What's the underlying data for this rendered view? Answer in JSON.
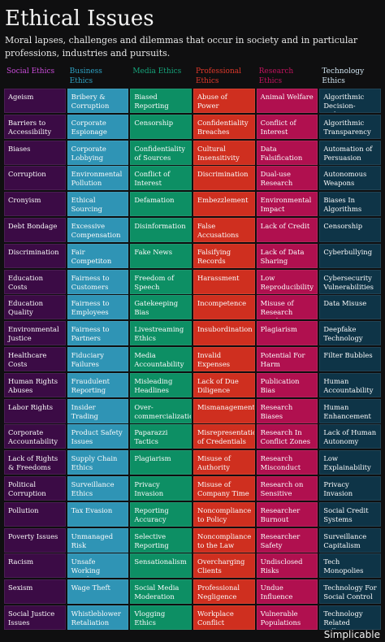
{
  "title": "Ethical Issues",
  "subtitle": "Moral lapses, challenges and dilemmas that occur in society and in particular professions, industries and pursuits.",
  "brand": "Simplicable",
  "columns": [
    {
      "header": "Social Ethics",
      "header_color": "#c94bd8",
      "cell_color": "#3b0b45",
      "items": [
        "Ageism",
        "Barriers to Accessibility",
        "Biases",
        "Corruption",
        "Cronyism",
        "Debt Bondage",
        "Discrimination",
        "Education Costs",
        "Education Quality",
        "Environmental Justice",
        "Healthcare Costs",
        "Human Rights Abuses",
        "Labor Rights",
        "Corporate Accountability",
        "Lack of Rights & Freedoms",
        "Political Corruption",
        "Pollution",
        "Poverty Issues",
        "Racism",
        "Sexism",
        "Social Justice Issues"
      ]
    },
    {
      "header": "Business Ethics",
      "header_color": "#2ea2c4",
      "cell_color": "#2f94b5",
      "items": [
        "Bribery & Corruption",
        "Corporate Espionage",
        "Corporate Lobbying",
        "Environmental Pollution",
        "Ethical Sourcing",
        "Excessive Compensation",
        "Fair Competiton",
        "Fairness to Customers",
        "Fairness to Employees",
        "Fairness to Partners",
        "Fiduciary Failures",
        "Fraudulent Reporting",
        "Insider Trading",
        "Product Safety Issues",
        "Supply Chain Ethics",
        "Surveillance Ethics",
        "Tax Evasion",
        "Unmanaged Risk",
        "Unsafe Working Conditions",
        "Wage Theft",
        "Whistleblower Retaliation"
      ]
    },
    {
      "header": "Media Ethics",
      "header_color": "#16a37a",
      "cell_color": "#0d8f64",
      "items": [
        "Biased Reporting",
        "Censorship",
        "Confidentiality of Sources",
        "Conflict of Interest",
        "Defamation",
        "Disinformation",
        "Fake News",
        "Freedom of Speech",
        "Gatekeeping Bias",
        "Livestreaming Ethics",
        "Media Accountability",
        "Misleading Headlines",
        "Over-commercialization",
        "Paparazzi Tactics",
        "Plagiarism",
        "Privacy Invasion",
        "Reporting Accuracy",
        "Selective Reporting",
        "Sensationalism",
        "Social Media Moderation",
        "Vlogging Ethics"
      ]
    },
    {
      "header": "Professional Ethics",
      "header_color": "#e0392b",
      "cell_color": "#cf2f1f",
      "items": [
        "Abuse of Power",
        "Confidentiality Breaches",
        "Cultural Insensitivity",
        "Discrimination",
        "Embezzlement",
        "False Accusations",
        "Falsifying Records",
        "Harassment",
        "Incompetence",
        "Insubordination",
        "Invalid Expenses",
        "Lack of Due Diligence",
        "Mismanagement",
        "Misrepresentation of Credentials",
        "Misuse of Authority",
        "Misuse of Company Time",
        "Noncompliance to Policy",
        "Noncompliance to the Law",
        "Overcharging Clients",
        "Professional Negligence",
        "Workplace Conflict"
      ]
    },
    {
      "header": "Research Ethics",
      "header_color": "#c2135e",
      "cell_color": "#b0104f",
      "items": [
        "Animal Welfare",
        "Conflict of Interest",
        "Data Falsification",
        "Dual-use Research",
        "Environmental Impact",
        "Lack of Credit",
        "Lack of Data Sharing",
        "Low Reproducibility",
        "Misuse of Research Funds",
        "Plagiarism",
        "Potential For Harm",
        "Publication Bias",
        "Research Biases",
        "Research In Conflict Zones",
        "Research Misconduct",
        "Research on Sensitive Topics",
        "Researcher Burnout",
        "Researcher Safety",
        "Undisclosed Risks",
        "Undue Influence",
        "Vulnerable Populations"
      ]
    },
    {
      "header": "Technology Ethics",
      "header_color": "#cfe3ef",
      "cell_color": "#0e3447",
      "items": [
        "Algorithmic Decision-making",
        "Algorithmic Transparency",
        "Automation of Persuasion",
        "Autonomous Weapons",
        "Biases In Algorithms",
        "Censorship",
        "Cyberbullying",
        "Cybersecurity Vulnerabilities",
        "Data Misuse",
        "Deepfake Technology",
        "Filter Bubbles",
        "Human Accountability",
        "Human Enhancement",
        "Lack of Human Autonomy",
        "Low Explainability",
        "Privacy Invasion",
        "Social Credit Systems",
        "Surveillance Capitalism",
        "Tech Monopolies",
        "Technology For Social Control",
        "Technology Related Pollution"
      ]
    }
  ]
}
